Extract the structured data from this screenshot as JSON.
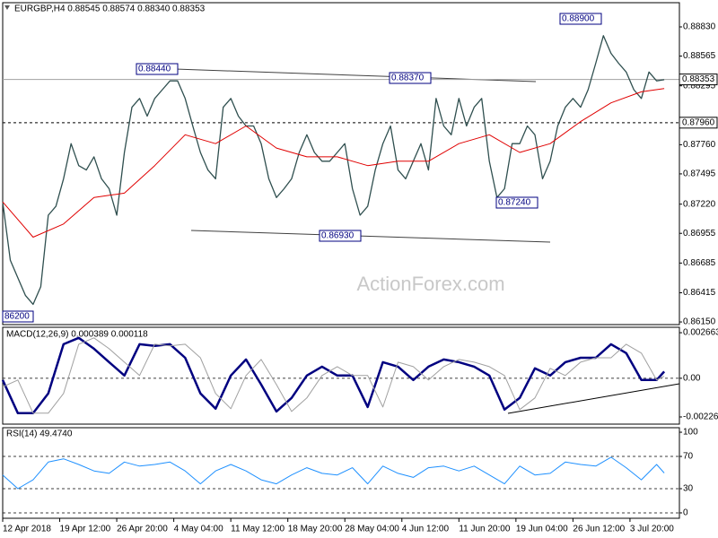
{
  "chart_data": [
    {
      "type": "line",
      "title": "EURGBP,H4 0.88545 0.88574 0.88340 0.88353",
      "watermark": "ActionForex.com",
      "x": [
        0,
        4,
        8,
        12,
        16,
        20,
        24,
        28,
        32,
        36,
        40,
        44,
        48,
        52,
        56,
        60,
        64,
        68,
        72,
        76,
        80,
        84,
        88,
        92,
        96,
        100,
        104,
        108,
        112,
        116,
        120,
        124,
        128,
        132,
        136,
        140,
        144,
        148,
        152,
        156,
        160,
        164,
        168,
        172,
        176,
        180,
        184,
        188,
        192,
        196,
        200,
        204,
        208,
        212,
        216,
        220,
        224,
        228,
        232,
        236,
        240,
        244,
        248,
        252,
        256,
        260,
        264,
        268,
        272,
        276,
        280,
        284,
        288,
        292,
        296,
        300,
        304,
        308,
        312,
        316,
        320,
        324,
        328,
        332,
        336,
        340,
        344,
        348
      ],
      "series": [
        {
          "color": "#2f4f4f",
          "values": [
            0.8724,
            0.8671,
            0.8655,
            0.8639,
            0.8631,
            0.8647,
            0.8712,
            0.872,
            0.8745,
            0.8777,
            0.8757,
            0.8753,
            0.8765,
            0.8745,
            0.8736,
            0.8712,
            0.8769,
            0.881,
            0.8818,
            0.8802,
            0.8818,
            0.8826,
            0.8834,
            0.8834,
            0.8818,
            0.8793,
            0.8769,
            0.8753,
            0.8745,
            0.881,
            0.8818,
            0.8802,
            0.8793,
            0.8793,
            0.8777,
            0.8745,
            0.8728,
            0.8736,
            0.8745,
            0.8769,
            0.8785,
            0.8769,
            0.8761,
            0.8761,
            0.8769,
            0.8777,
            0.8736,
            0.8712,
            0.872,
            0.8753,
            0.8777,
            0.8793,
            0.8753,
            0.8745,
            0.8761,
            0.8777,
            0.8753,
            0.8818,
            0.8793,
            0.8785,
            0.8818,
            0.8793,
            0.881,
            0.8818,
            0.8761,
            0.8728,
            0.8736,
            0.8777,
            0.8777,
            0.8793,
            0.8785,
            0.8745,
            0.8761,
            0.8793,
            0.881,
            0.8818,
            0.881,
            0.8826,
            0.885,
            0.8875,
            0.8859,
            0.885,
            0.8842,
            0.8826,
            0.8818,
            0.8842,
            0.8834,
            0.8835
          ]
        },
        {
          "color": "#e00000",
          "x": [
            0,
            16,
            32,
            48,
            64,
            80,
            96,
            112,
            128,
            144,
            160,
            176,
            192,
            208,
            224,
            240,
            256,
            272,
            288,
            304,
            320,
            336,
            348
          ],
          "values": [
            0.8724,
            0.8692,
            0.8704,
            0.8728,
            0.8732,
            0.8757,
            0.8785,
            0.8777,
            0.8793,
            0.8773,
            0.8765,
            0.8765,
            0.8757,
            0.8761,
            0.8761,
            0.8777,
            0.8785,
            0.8769,
            0.8777,
            0.8797,
            0.8814,
            0.8824,
            0.8827
          ]
        }
      ],
      "xlim": [
        0,
        356
      ],
      "ylim": [
        0.86126,
        0.8905
      ],
      "yticks": [
        {
          "value": 0.8883,
          "label": "0.88830"
        },
        {
          "value": 0.88565,
          "label": "0.88565"
        },
        {
          "value": 0.88295,
          "label": "0.88295"
        },
        {
          "value": 0.8776,
          "label": "0.87760"
        },
        {
          "value": 0.87495,
          "label": "0.87495"
        },
        {
          "value": 0.8722,
          "label": "0.87220"
        },
        {
          "value": 0.86955,
          "label": "0.86955"
        },
        {
          "value": 0.86685,
          "label": "0.86685"
        },
        {
          "value": 0.86415,
          "label": "0.86415"
        },
        {
          "value": 0.8615,
          "label": "0.86150"
        }
      ],
      "hlines": [
        {
          "value": 0.88353,
          "label": "0.88353",
          "style": "solid"
        },
        {
          "value": 0.8796,
          "label": "0.87960",
          "style": "dashed"
        }
      ],
      "annotations": [
        "0.88440",
        "0.88370",
        "0.86930",
        "0.87240",
        "0.88900",
        "86200"
      ]
    },
    {
      "type": "line",
      "title": "MACD(12,26,9) 0.000389 0.000118",
      "x": [
        0,
        8,
        16,
        24,
        32,
        40,
        48,
        56,
        64,
        72,
        80,
        88,
        96,
        104,
        112,
        120,
        128,
        136,
        144,
        152,
        160,
        168,
        176,
        184,
        192,
        200,
        208,
        216,
        224,
        232,
        240,
        248,
        256,
        264,
        272,
        280,
        288,
        296,
        304,
        312,
        320,
        328,
        336,
        344,
        348
      ],
      "series": [
        {
          "color": "#000080",
          "values": [
            -0.0001,
            -0.00204,
            -0.00204,
            -0.00089,
            0.00199,
            0.00236,
            0.00173,
            0.00094,
            0.00016,
            0.00199,
            0.00189,
            0.00199,
            0.0012,
            -0.00089,
            -0.00178,
            0.00016,
            0.0011,
            -0.00037,
            -0.00194,
            -0.00115,
            0.00016,
            0.00068,
            0.00016,
            0.00016,
            -0.00168,
            0.00094,
            0.00068,
            -0.0001,
            0.00068,
            0.0011,
            0.00094,
            0.00068,
            0.00016,
            -0.00183,
            -0.00115,
            0.00058,
            0.00016,
            0.00094,
            0.0012,
            0.0012,
            0.00199,
            0.00147,
            -0.0001,
            -0.0001,
            0.00039
          ]
        },
        {
          "color": "#a0a0a0",
          "values": [
            -0.0005,
            -0.0001,
            -0.00204,
            -0.00204,
            -0.00089,
            0.00199,
            0.00236,
            0.00173,
            0.00094,
            0.00016,
            0.00199,
            0.00189,
            0.00199,
            0.0012,
            -0.00089,
            -0.00178,
            0.00016,
            0.0011,
            -0.00037,
            -0.00194,
            -0.00115,
            0.00016,
            0.00068,
            0.00016,
            0.00016,
            -0.00168,
            0.00094,
            0.00068,
            -0.0001,
            0.00068,
            0.0011,
            0.00094,
            0.00068,
            0.00016,
            -0.00183,
            -0.00115,
            0.00058,
            0.00016,
            0.00094,
            0.0012,
            0.0012,
            0.00199,
            0.00147,
            -0.0001,
            0.000118
          ]
        }
      ],
      "xlim": [
        0,
        356
      ],
      "ylim": [
        -0.00268,
        0.00298
      ],
      "yticks": [
        0.002663,
        {
          "value": 0,
          "label": "0.00"
        },
        -0.00226
      ],
      "grid": "dashed-inner"
    },
    {
      "type": "line",
      "title": "RSI(14) 49.4740",
      "x": [
        0,
        8,
        16,
        24,
        32,
        40,
        48,
        56,
        64,
        72,
        80,
        88,
        96,
        104,
        112,
        120,
        128,
        136,
        144,
        152,
        160,
        168,
        176,
        184,
        192,
        200,
        208,
        216,
        224,
        232,
        240,
        248,
        256,
        264,
        272,
        280,
        288,
        296,
        304,
        312,
        320,
        328,
        336,
        344,
        348
      ],
      "series": [
        {
          "color": "#1e90ff",
          "values": [
            47,
            30,
            41,
            63,
            67,
            60,
            52,
            49,
            63,
            58,
            60,
            63,
            52,
            36,
            52,
            60,
            52,
            41,
            36,
            47,
            56,
            49,
            47,
            56,
            36,
            58,
            49,
            44,
            56,
            58,
            52,
            58,
            47,
            36,
            58,
            47,
            49,
            63,
            60,
            58,
            69,
            56,
            41,
            60,
            49.474
          ]
        }
      ],
      "xlim": [
        0,
        356
      ],
      "ylim": [
        -6.7,
        105.6
      ],
      "yticks": [
        100,
        70,
        30,
        0
      ],
      "grid": "dashed-inner",
      "xticks": [
        {
          "value": 0,
          "label": "12 Apr 2018"
        },
        {
          "value": 30,
          "label": "19 Apr 12:00"
        },
        {
          "value": 60,
          "label": "26 Apr 20:00"
        },
        {
          "value": 90,
          "label": "4 May 04:00"
        },
        {
          "value": 120,
          "label": "11 May 12:00"
        },
        {
          "value": 150,
          "label": "18 May 20:00"
        },
        {
          "value": 180,
          "label": "28 May 04:00"
        },
        {
          "value": 210,
          "label": "4 Jun 12:00"
        },
        {
          "value": 240,
          "label": "11 Jun 20:00"
        },
        {
          "value": 270,
          "label": "19 Jun 04:00"
        },
        {
          "value": 300,
          "label": "26 Jun 12:00"
        },
        {
          "value": 330,
          "label": "3 Jul 20:00"
        }
      ]
    }
  ]
}
